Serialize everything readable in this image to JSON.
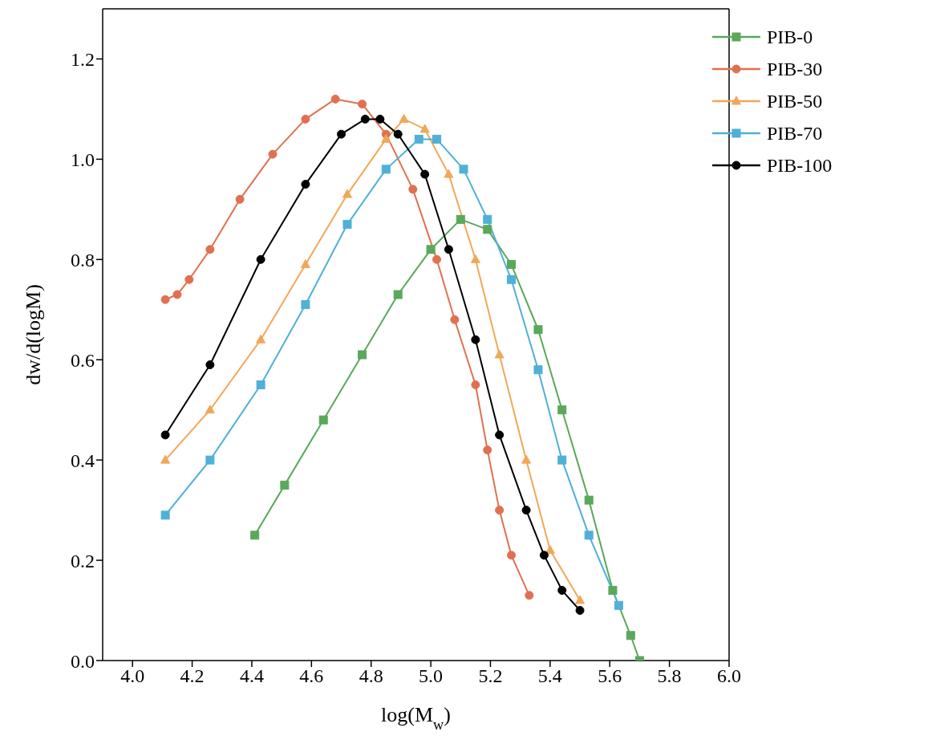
{
  "chart_data": {
    "type": "line",
    "xlabel": "log(M$_{w}$)",
    "ylabel": "dw/d(logM)",
    "xlim": [
      3.9,
      6.0
    ],
    "ylim": [
      0,
      1.3
    ],
    "xticks": [
      {
        "value": 4.0,
        "label": "4.0"
      },
      {
        "value": 4.2,
        "label": "4.2"
      },
      {
        "value": 4.4,
        "label": "4.4"
      },
      {
        "value": 4.6,
        "label": "4.6"
      },
      {
        "value": 4.8,
        "label": "4.8"
      },
      {
        "value": 5.0,
        "label": "5.0"
      },
      {
        "value": 5.2,
        "label": "5.2"
      },
      {
        "value": 5.4,
        "label": "5.4"
      },
      {
        "value": 5.6,
        "label": "5.6"
      },
      {
        "value": 5.8,
        "label": "5.8"
      },
      {
        "value": 6.0,
        "label": "6.0"
      }
    ],
    "yticks": [
      {
        "value": 0,
        "label": "0.0"
      },
      {
        "value": 0.2,
        "label": "0.2"
      },
      {
        "value": 0.4,
        "label": "0.4"
      },
      {
        "value": 0.6,
        "label": "0.6"
      },
      {
        "value": 0.8,
        "label": "0.8"
      },
      {
        "value": 1.0,
        "label": "1.0"
      },
      {
        "value": 1.2,
        "label": "1.2"
      }
    ],
    "grid": false,
    "legend": "top right",
    "line_style": "solid",
    "series": [
      {
        "name": "PIB-0",
        "color": "#5aa85a",
        "marker": "square",
        "x": [
          4.41,
          4.51,
          4.64,
          4.77,
          4.89,
          5.0,
          5.1,
          5.19,
          5.27,
          5.36,
          5.44,
          5.53,
          5.61,
          5.67,
          5.7
        ],
        "values": [
          0.25,
          0.35,
          0.48,
          0.61,
          0.73,
          0.82,
          0.88,
          0.86,
          0.79,
          0.66,
          0.5,
          0.32,
          0.14,
          0.05,
          0.0
        ]
      },
      {
        "name": "PIB-30",
        "color": "#e07050",
        "marker": "circle",
        "x": [
          4.11,
          4.15,
          4.19,
          4.26,
          4.36,
          4.47,
          4.58,
          4.68,
          4.77,
          4.85,
          4.94,
          5.02,
          5.08,
          5.15,
          5.19,
          5.23,
          5.27,
          5.33
        ],
        "values": [
          0.72,
          0.73,
          0.76,
          0.82,
          0.92,
          1.01,
          1.08,
          1.12,
          1.11,
          1.05,
          0.94,
          0.8,
          0.68,
          0.55,
          0.42,
          0.3,
          0.21,
          0.13
        ]
      },
      {
        "name": "PIB-50",
        "color": "#f0a858",
        "marker": "triangle",
        "x": [
          4.11,
          4.26,
          4.43,
          4.58,
          4.72,
          4.85,
          4.91,
          4.98,
          5.06,
          5.15,
          5.23,
          5.32,
          5.4,
          5.5
        ],
        "values": [
          0.4,
          0.5,
          0.64,
          0.79,
          0.93,
          1.04,
          1.08,
          1.06,
          0.97,
          0.8,
          0.61,
          0.4,
          0.22,
          0.12
        ]
      },
      {
        "name": "PIB-70",
        "color": "#4fb0d8",
        "marker": "square",
        "x": [
          4.11,
          4.26,
          4.43,
          4.58,
          4.72,
          4.85,
          4.96,
          5.02,
          5.11,
          5.19,
          5.27,
          5.36,
          5.44,
          5.53,
          5.63
        ],
        "values": [
          0.29,
          0.4,
          0.55,
          0.71,
          0.87,
          0.98,
          1.04,
          1.04,
          0.98,
          0.88,
          0.76,
          0.58,
          0.4,
          0.25,
          0.11
        ]
      },
      {
        "name": "PIB-100",
        "color": "#000000",
        "marker": "circle",
        "x": [
          4.11,
          4.26,
          4.43,
          4.58,
          4.7,
          4.78,
          4.83,
          4.89,
          4.98,
          5.06,
          5.15,
          5.23,
          5.32,
          5.38,
          5.44,
          5.5
        ],
        "values": [
          0.45,
          0.59,
          0.8,
          0.95,
          1.05,
          1.08,
          1.08,
          1.05,
          0.97,
          0.82,
          0.64,
          0.45,
          0.3,
          0.21,
          0.14,
          0.1
        ]
      }
    ]
  }
}
